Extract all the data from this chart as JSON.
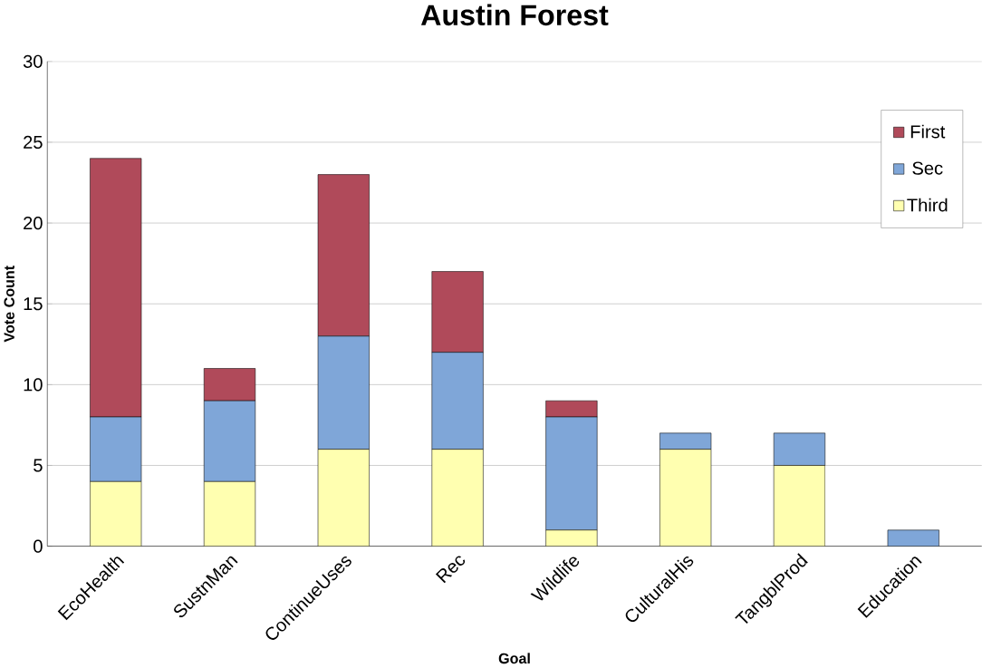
{
  "chart_data": {
    "type": "bar",
    "title": "Austin Forest",
    "xlabel": "Goal",
    "ylabel": "Vote Count",
    "categories": [
      "EcoHealth",
      "SustnMan",
      "ContinueUses",
      "Rec",
      "Wildlife",
      "CulturalHis",
      "TangblProd",
      "Education"
    ],
    "stacked": true,
    "series": [
      {
        "name": "Third",
        "color": "#ffffb0",
        "values": [
          4,
          4,
          6,
          6,
          1,
          6,
          5,
          0
        ]
      },
      {
        "name": "Sec",
        "color": "#7fa6d8",
        "values": [
          4,
          5,
          7,
          6,
          7,
          1,
          2,
          1
        ]
      },
      {
        "name": "First",
        "color": "#b04a5a",
        "values": [
          16,
          2,
          10,
          5,
          1,
          0,
          0,
          0
        ]
      }
    ],
    "ylim": [
      0,
      30
    ],
    "yticks": [
      0,
      5,
      10,
      15,
      20,
      25,
      30
    ],
    "grid": "y",
    "legend": "top right"
  }
}
